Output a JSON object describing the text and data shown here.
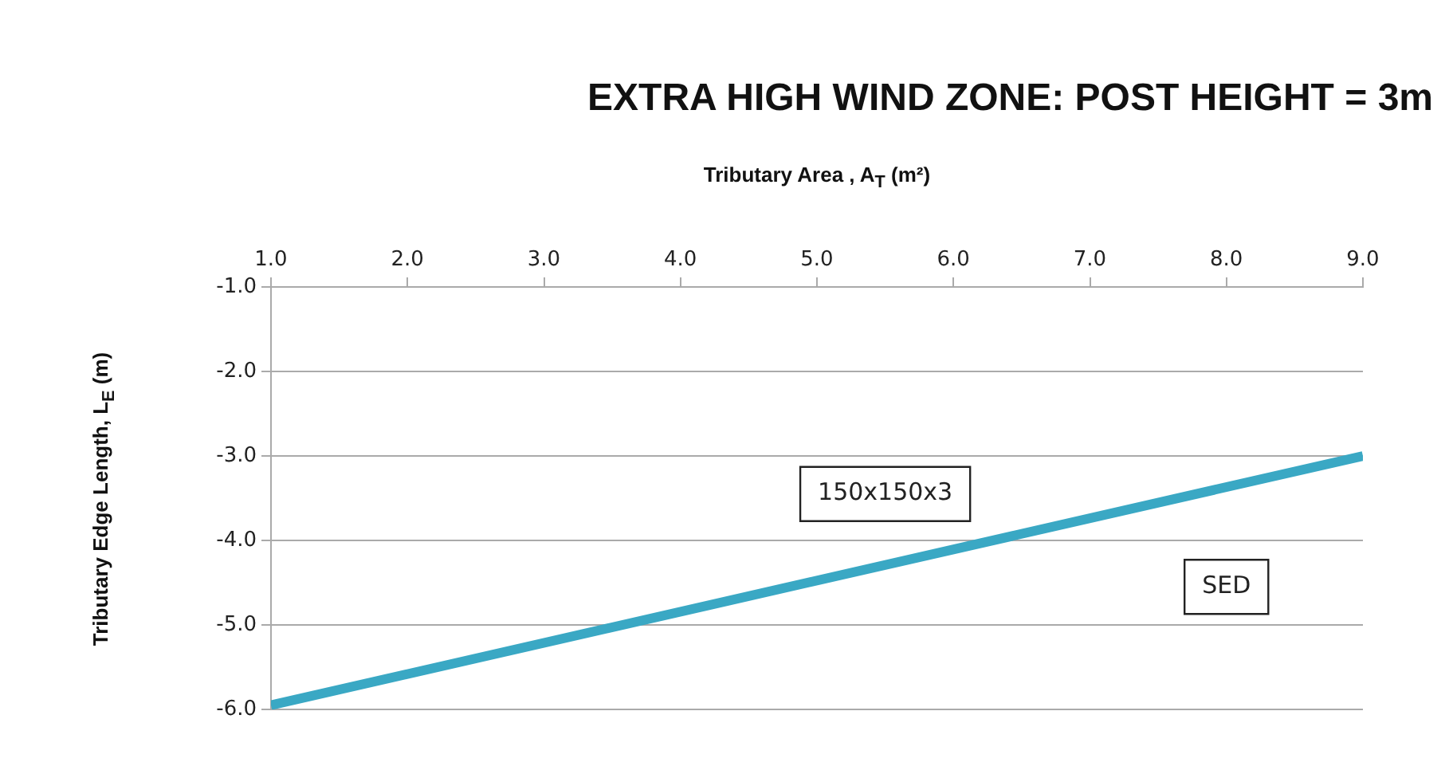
{
  "chart_data": {
    "type": "line",
    "title": "EXTRA HIGH WIND ZONE: POST HEIGHT = 3m",
    "xlabel": "Tributary Area , A$_{T}$ (m²)",
    "ylabel": "Tributary Edge Length, L$_{E}$ (m)",
    "x": [
      1,
      9
    ],
    "series": [
      {
        "color": "#3aa8c4",
        "values": [
          -5.95,
          -3.0
        ]
      }
    ],
    "xlim": [
      1,
      9
    ],
    "xticks": [
      {
        "value": 1,
        "label": "1.0"
      },
      {
        "value": 2,
        "label": "2.0"
      },
      {
        "value": 3,
        "label": "3.0"
      },
      {
        "value": 4,
        "label": "4.0"
      },
      {
        "value": 5,
        "label": "5.0"
      },
      {
        "value": 6,
        "label": "6.0"
      },
      {
        "value": 7,
        "label": "7.0"
      },
      {
        "value": 8,
        "label": "8.0"
      },
      {
        "value": 9,
        "label": "9.0"
      }
    ],
    "ylim": [
      -6,
      -1
    ],
    "yticks": [
      {
        "value": -6,
        "label": "-6.0"
      },
      {
        "value": -5,
        "label": "-5.0"
      },
      {
        "value": -4,
        "label": "-4.0"
      },
      {
        "value": -3,
        "label": "-3.0"
      },
      {
        "value": -2,
        "label": "-2.0"
      },
      {
        "value": -1,
        "label": "-1.0"
      }
    ],
    "annotations": [
      "150x150x3",
      "SED"
    ],
    "grid": "y",
    "legend": false,
    "marker": "none",
    "line_style": "solid"
  }
}
